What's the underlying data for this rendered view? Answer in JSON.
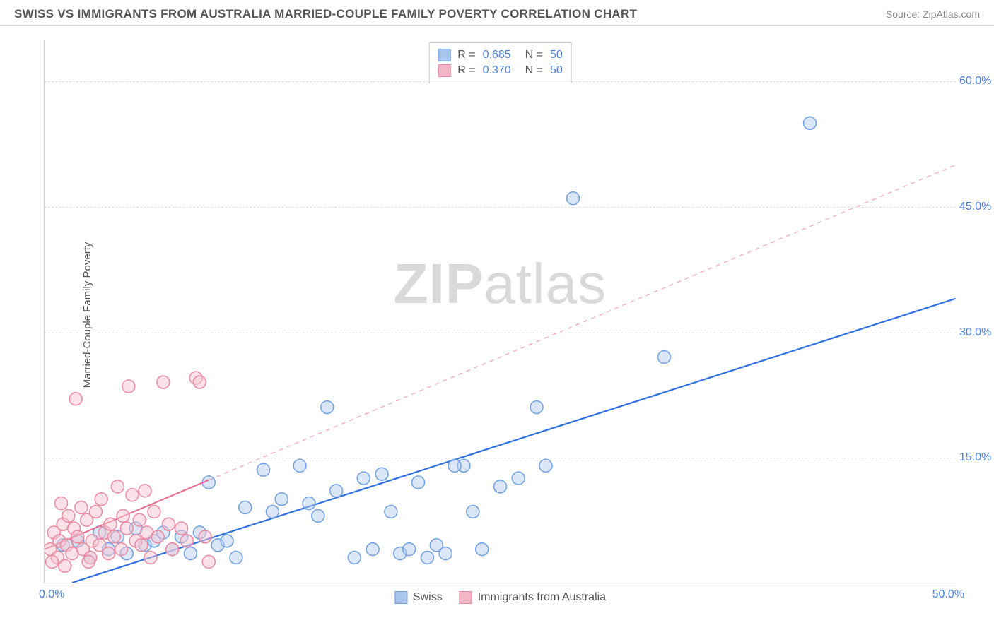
{
  "header": {
    "title": "SWISS VS IMMIGRANTS FROM AUSTRALIA MARRIED-COUPLE FAMILY POVERTY CORRELATION CHART",
    "source": "Source: ZipAtlas.com"
  },
  "watermark": {
    "part1": "ZIP",
    "part2": "atlas"
  },
  "chart": {
    "type": "scatter",
    "y_axis_title": "Married-Couple Family Poverty",
    "xlim": [
      0,
      50
    ],
    "ylim": [
      0,
      65
    ],
    "x_ticks": [
      {
        "value": 0,
        "label": "0.0%"
      },
      {
        "value": 50,
        "label": "50.0%"
      }
    ],
    "y_ticks": [
      {
        "value": 15,
        "label": "15.0%"
      },
      {
        "value": 30,
        "label": "30.0%"
      },
      {
        "value": 45,
        "label": "45.0%"
      },
      {
        "value": 60,
        "label": "60.0%"
      }
    ],
    "grid_color": "#dddddd",
    "axis_color": "#cccccc",
    "background_color": "#ffffff",
    "marker_radius": 9,
    "marker_stroke_width": 1.5,
    "marker_fill_opacity": 0.25,
    "series": [
      {
        "name": "Swiss",
        "fill_color": "#b8d0f0",
        "stroke_color": "#6f9fe0",
        "legend_color": "#a8c5ec",
        "R": "0.685",
        "N": "50",
        "trend_line": {
          "x1": 1.5,
          "y1": 0,
          "x2": 50,
          "y2": 34,
          "solid_until_x": 50,
          "color": "#2f6fe0",
          "width": 2.2
        },
        "points": [
          [
            1.0,
            4.5
          ],
          [
            1.8,
            5.0
          ],
          [
            2.5,
            3.0
          ],
          [
            3.0,
            6.0
          ],
          [
            3.5,
            4.0
          ],
          [
            4.0,
            5.5
          ],
          [
            4.5,
            3.5
          ],
          [
            5.0,
            6.5
          ],
          [
            5.5,
            4.5
          ],
          [
            6.0,
            5.0
          ],
          [
            6.5,
            6.0
          ],
          [
            7.0,
            4.0
          ],
          [
            7.5,
            5.5
          ],
          [
            8.0,
            3.5
          ],
          [
            8.5,
            6.0
          ],
          [
            9.0,
            12.0
          ],
          [
            9.5,
            4.5
          ],
          [
            10.0,
            5.0
          ],
          [
            10.5,
            3.0
          ],
          [
            11.0,
            9.0
          ],
          [
            12.0,
            13.5
          ],
          [
            12.5,
            8.5
          ],
          [
            13.0,
            10.0
          ],
          [
            14.0,
            14.0
          ],
          [
            14.5,
            9.5
          ],
          [
            15.0,
            8.0
          ],
          [
            15.5,
            21.0
          ],
          [
            16.0,
            11.0
          ],
          [
            17.0,
            3.0
          ],
          [
            17.5,
            12.5
          ],
          [
            18.0,
            4.0
          ],
          [
            18.5,
            13.0
          ],
          [
            19.0,
            8.5
          ],
          [
            19.5,
            3.5
          ],
          [
            20.0,
            4.0
          ],
          [
            20.5,
            12.0
          ],
          [
            21.0,
            3.0
          ],
          [
            21.5,
            4.5
          ],
          [
            22.0,
            3.5
          ],
          [
            23.0,
            14.0
          ],
          [
            23.5,
            8.5
          ],
          [
            24.0,
            4.0
          ],
          [
            25.0,
            11.5
          ],
          [
            27.0,
            21.0
          ],
          [
            27.5,
            14.0
          ],
          [
            29.0,
            46.0
          ],
          [
            34.0,
            27.0
          ],
          [
            42.0,
            55.0
          ],
          [
            26.0,
            12.5
          ],
          [
            22.5,
            14.0
          ]
        ]
      },
      {
        "name": "Immigrants from Australia",
        "fill_color": "#f6c6d2",
        "stroke_color": "#e88aa3",
        "legend_color": "#f2b6c6",
        "R": "0.370",
        "N": "50",
        "trend_line": {
          "x1": 0,
          "y1": 4,
          "x2": 50,
          "y2": 50,
          "solid_until_x": 9,
          "color": "#e86a8a",
          "width": 2.0
        },
        "points": [
          [
            0.3,
            4.0
          ],
          [
            0.5,
            6.0
          ],
          [
            0.7,
            3.0
          ],
          [
            0.8,
            5.0
          ],
          [
            1.0,
            7.0
          ],
          [
            1.2,
            4.5
          ],
          [
            1.3,
            8.0
          ],
          [
            1.5,
            3.5
          ],
          [
            1.6,
            6.5
          ],
          [
            1.8,
            5.5
          ],
          [
            2.0,
            9.0
          ],
          [
            2.1,
            4.0
          ],
          [
            2.3,
            7.5
          ],
          [
            2.5,
            3.0
          ],
          [
            2.6,
            5.0
          ],
          [
            2.8,
            8.5
          ],
          [
            3.0,
            4.5
          ],
          [
            3.1,
            10.0
          ],
          [
            3.3,
            6.0
          ],
          [
            3.5,
            3.5
          ],
          [
            3.6,
            7.0
          ],
          [
            3.8,
            5.5
          ],
          [
            4.0,
            11.5
          ],
          [
            4.2,
            4.0
          ],
          [
            4.3,
            8.0
          ],
          [
            4.5,
            6.5
          ],
          [
            4.6,
            23.5
          ],
          [
            4.8,
            10.5
          ],
          [
            5.0,
            5.0
          ],
          [
            5.2,
            7.5
          ],
          [
            5.3,
            4.5
          ],
          [
            5.5,
            11.0
          ],
          [
            5.6,
            6.0
          ],
          [
            5.8,
            3.0
          ],
          [
            6.0,
            8.5
          ],
          [
            6.2,
            5.5
          ],
          [
            6.5,
            24.0
          ],
          [
            6.8,
            7.0
          ],
          [
            7.0,
            4.0
          ],
          [
            7.5,
            6.5
          ],
          [
            7.8,
            5.0
          ],
          [
            8.3,
            24.5
          ],
          [
            8.5,
            24.0
          ],
          [
            8.8,
            5.5
          ],
          [
            9.0,
            2.5
          ],
          [
            0.4,
            2.5
          ],
          [
            1.1,
            2.0
          ],
          [
            2.4,
            2.5
          ],
          [
            0.9,
            9.5
          ],
          [
            1.7,
            22.0
          ]
        ]
      }
    ],
    "legend_bottom": [
      {
        "label": "Swiss",
        "color": "#a8c5ec",
        "border": "#6f9fe0"
      },
      {
        "label": "Immigrants from Australia",
        "color": "#f2b6c6",
        "border": "#e88aa3"
      }
    ]
  }
}
